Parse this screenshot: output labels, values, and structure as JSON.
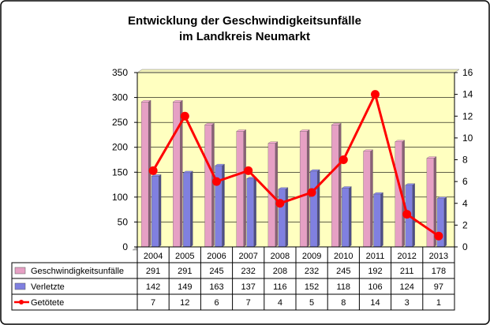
{
  "chart_data": {
    "type": "bar",
    "title": "Entwicklung der Geschwindigkeitsunfälle",
    "subtitle": "im Landkreis Neumarkt",
    "categories": [
      "2004",
      "2005",
      "2006",
      "2007",
      "2008",
      "2009",
      "2010",
      "2011",
      "2012",
      "2013"
    ],
    "series": [
      {
        "name": "Geschwindigkeitsunfälle",
        "type": "bar",
        "axis": "left",
        "color": "#e6a0c4",
        "values": [
          291,
          291,
          245,
          232,
          208,
          232,
          245,
          192,
          211,
          178
        ]
      },
      {
        "name": "Verletzte",
        "type": "bar",
        "axis": "left",
        "color": "#8080e0",
        "values": [
          142,
          149,
          163,
          137,
          116,
          152,
          118,
          106,
          124,
          97
        ]
      },
      {
        "name": "Getötete",
        "type": "line",
        "axis": "right",
        "color": "#ff0000",
        "values": [
          7,
          12,
          6,
          7,
          4,
          5,
          8,
          14,
          3,
          1
        ]
      }
    ],
    "ylim": [
      0,
      350
    ],
    "y_ticks": [
      0,
      50,
      100,
      150,
      200,
      250,
      300,
      350
    ],
    "y2lim": [
      0,
      16
    ],
    "y2_ticks": [
      0,
      2,
      4,
      6,
      8,
      10,
      12,
      14,
      16
    ],
    "plot_background": "#ffffc0",
    "legend": "data table below chart"
  }
}
